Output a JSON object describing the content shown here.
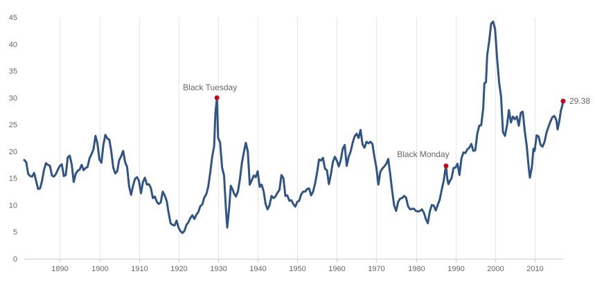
{
  "chart_data": {
    "type": "line",
    "title": "",
    "xlabel": "",
    "ylabel": "",
    "xlim": [
      1881,
      2017.2
    ],
    "ylim": [
      0,
      45
    ],
    "x_ticks": [
      1890,
      1900,
      1910,
      1920,
      1930,
      1940,
      1950,
      1960,
      1970,
      1980,
      1990,
      2000,
      2010
    ],
    "y_ticks": [
      0,
      5,
      10,
      15,
      20,
      25,
      30,
      35,
      40,
      45
    ],
    "grid": "vertical",
    "line_color": "#2f5486",
    "marker_color": "#d0021b",
    "series": [
      {
        "points": [
          [
            1881.0,
            18.4
          ],
          [
            1881.5,
            18.0
          ],
          [
            1882.0,
            15.8
          ],
          [
            1882.5,
            15.4
          ],
          [
            1883.0,
            15.3
          ],
          [
            1883.5,
            16.0
          ],
          [
            1884.0,
            14.5
          ],
          [
            1884.5,
            13.0
          ],
          [
            1885.0,
            13.1
          ],
          [
            1885.5,
            14.5
          ],
          [
            1886.0,
            16.6
          ],
          [
            1886.5,
            17.8
          ],
          [
            1887.0,
            17.5
          ],
          [
            1887.5,
            17.3
          ],
          [
            1888.0,
            15.5
          ],
          [
            1888.5,
            15.3
          ],
          [
            1889.0,
            15.8
          ],
          [
            1889.5,
            16.6
          ],
          [
            1890.0,
            17.3
          ],
          [
            1890.5,
            17.6
          ],
          [
            1891.0,
            15.4
          ],
          [
            1891.5,
            15.6
          ],
          [
            1892.0,
            18.9
          ],
          [
            1892.5,
            19.2
          ],
          [
            1893.0,
            17.6
          ],
          [
            1893.5,
            14.3
          ],
          [
            1894.0,
            15.8
          ],
          [
            1894.5,
            16.4
          ],
          [
            1895.0,
            16.6
          ],
          [
            1895.5,
            17.5
          ],
          [
            1896.0,
            16.5
          ],
          [
            1896.5,
            16.9
          ],
          [
            1897.0,
            17.1
          ],
          [
            1897.5,
            18.7
          ],
          [
            1898.0,
            19.5
          ],
          [
            1898.5,
            20.4
          ],
          [
            1899.0,
            22.9
          ],
          [
            1899.5,
            21.5
          ],
          [
            1900.0,
            18.5
          ],
          [
            1900.5,
            17.9
          ],
          [
            1901.0,
            21.2
          ],
          [
            1901.5,
            23.1
          ],
          [
            1902.0,
            22.4
          ],
          [
            1902.5,
            22.2
          ],
          [
            1903.0,
            20.0
          ],
          [
            1903.5,
            17.0
          ],
          [
            1904.0,
            15.9
          ],
          [
            1904.5,
            16.3
          ],
          [
            1905.0,
            18.4
          ],
          [
            1905.5,
            19.1
          ],
          [
            1906.0,
            20.1
          ],
          [
            1906.5,
            18.0
          ],
          [
            1907.0,
            17.1
          ],
          [
            1907.5,
            13.5
          ],
          [
            1908.0,
            11.9
          ],
          [
            1908.5,
            13.6
          ],
          [
            1909.0,
            14.9
          ],
          [
            1909.5,
            15.2
          ],
          [
            1910.0,
            14.5
          ],
          [
            1910.5,
            12.2
          ],
          [
            1911.0,
            14.3
          ],
          [
            1911.5,
            15.1
          ],
          [
            1912.0,
            13.8
          ],
          [
            1912.5,
            13.9
          ],
          [
            1913.0,
            13.2
          ],
          [
            1913.5,
            11.3
          ],
          [
            1914.0,
            11.6
          ],
          [
            1914.5,
            10.6
          ],
          [
            1915.0,
            10.2
          ],
          [
            1915.5,
            10.5
          ],
          [
            1916.0,
            12.5
          ],
          [
            1916.5,
            11.8
          ],
          [
            1917.0,
            10.8
          ],
          [
            1917.5,
            8.5
          ],
          [
            1918.0,
            6.6
          ],
          [
            1918.5,
            6.3
          ],
          [
            1919.0,
            6.2
          ],
          [
            1919.5,
            7.1
          ],
          [
            1920.0,
            5.8
          ],
          [
            1920.5,
            5.1
          ],
          [
            1921.0,
            4.8
          ],
          [
            1921.5,
            5.2
          ],
          [
            1922.0,
            6.3
          ],
          [
            1922.5,
            6.8
          ],
          [
            1923.0,
            7.6
          ],
          [
            1923.5,
            8.1
          ],
          [
            1924.0,
            7.4
          ],
          [
            1924.5,
            8.2
          ],
          [
            1925.0,
            8.7
          ],
          [
            1925.5,
            9.8
          ],
          [
            1926.0,
            10.1
          ],
          [
            1926.5,
            11.4
          ],
          [
            1927.0,
            12.0
          ],
          [
            1927.5,
            13.4
          ],
          [
            1928.0,
            16.0
          ],
          [
            1928.5,
            19.0
          ],
          [
            1929.0,
            21.0
          ],
          [
            1929.3,
            27.0
          ],
          [
            1929.7,
            30.0
          ],
          [
            1930.0,
            22.5
          ],
          [
            1930.5,
            21.7
          ],
          [
            1931.0,
            17.0
          ],
          [
            1931.5,
            15.5
          ],
          [
            1932.0,
            9.0
          ],
          [
            1932.3,
            5.8
          ],
          [
            1932.8,
            9.5
          ],
          [
            1933.2,
            13.6
          ],
          [
            1933.6,
            13.0
          ],
          [
            1934.0,
            12.2
          ],
          [
            1934.5,
            11.6
          ],
          [
            1935.0,
            12.5
          ],
          [
            1935.5,
            14.8
          ],
          [
            1936.0,
            17.8
          ],
          [
            1936.5,
            19.8
          ],
          [
            1937.0,
            21.6
          ],
          [
            1937.5,
            20.0
          ],
          [
            1938.0,
            13.8
          ],
          [
            1938.5,
            14.6
          ],
          [
            1939.0,
            15.5
          ],
          [
            1939.5,
            15.2
          ],
          [
            1940.0,
            16.3
          ],
          [
            1940.5,
            13.4
          ],
          [
            1941.0,
            13.8
          ],
          [
            1941.5,
            12.6
          ],
          [
            1942.0,
            10.2
          ],
          [
            1942.5,
            9.2
          ],
          [
            1943.0,
            10.0
          ],
          [
            1943.5,
            11.7
          ],
          [
            1944.0,
            11.3
          ],
          [
            1944.5,
            11.6
          ],
          [
            1945.0,
            12.3
          ],
          [
            1945.5,
            12.8
          ],
          [
            1946.0,
            15.6
          ],
          [
            1946.5,
            15.0
          ],
          [
            1947.0,
            11.7
          ],
          [
            1947.5,
            11.8
          ],
          [
            1948.0,
            10.8
          ],
          [
            1948.5,
            10.9
          ],
          [
            1949.0,
            10.2
          ],
          [
            1949.5,
            9.7
          ],
          [
            1950.0,
            10.6
          ],
          [
            1950.5,
            10.8
          ],
          [
            1951.0,
            12.0
          ],
          [
            1951.5,
            12.5
          ],
          [
            1952.0,
            12.5
          ],
          [
            1952.5,
            13.0
          ],
          [
            1953.0,
            13.1
          ],
          [
            1953.5,
            11.8
          ],
          [
            1954.0,
            12.5
          ],
          [
            1954.5,
            14.0
          ],
          [
            1955.0,
            16.0
          ],
          [
            1955.5,
            18.5
          ],
          [
            1956.0,
            18.3
          ],
          [
            1956.5,
            18.8
          ],
          [
            1957.0,
            16.8
          ],
          [
            1957.5,
            16.5
          ],
          [
            1958.0,
            13.9
          ],
          [
            1958.5,
            15.7
          ],
          [
            1959.0,
            18.0
          ],
          [
            1959.5,
            19.0
          ],
          [
            1960.0,
            18.3
          ],
          [
            1960.5,
            17.2
          ],
          [
            1961.0,
            18.4
          ],
          [
            1961.5,
            20.5
          ],
          [
            1962.0,
            21.2
          ],
          [
            1962.5,
            17.3
          ],
          [
            1963.0,
            19.0
          ],
          [
            1963.5,
            20.0
          ],
          [
            1964.0,
            21.6
          ],
          [
            1964.5,
            22.8
          ],
          [
            1965.0,
            23.3
          ],
          [
            1965.5,
            22.5
          ],
          [
            1966.0,
            24.0
          ],
          [
            1966.5,
            21.3
          ],
          [
            1967.0,
            20.7
          ],
          [
            1967.5,
            21.8
          ],
          [
            1968.0,
            21.5
          ],
          [
            1968.5,
            21.8
          ],
          [
            1969.0,
            21.4
          ],
          [
            1969.5,
            19.0
          ],
          [
            1970.0,
            17.0
          ],
          [
            1970.5,
            13.8
          ],
          [
            1971.0,
            16.2
          ],
          [
            1971.5,
            16.8
          ],
          [
            1972.0,
            17.2
          ],
          [
            1972.5,
            17.7
          ],
          [
            1973.0,
            18.6
          ],
          [
            1973.5,
            15.7
          ],
          [
            1974.0,
            12.6
          ],
          [
            1974.5,
            9.9
          ],
          [
            1975.0,
            8.9
          ],
          [
            1975.5,
            10.6
          ],
          [
            1976.0,
            11.2
          ],
          [
            1976.5,
            11.3
          ],
          [
            1977.0,
            11.7
          ],
          [
            1977.5,
            11.4
          ],
          [
            1978.0,
            9.8
          ],
          [
            1978.5,
            9.2
          ],
          [
            1979.0,
            9.3
          ],
          [
            1979.5,
            9.3
          ],
          [
            1980.0,
            8.9
          ],
          [
            1980.5,
            8.8
          ],
          [
            1981.0,
            8.9
          ],
          [
            1981.5,
            9.2
          ],
          [
            1982.0,
            8.6
          ],
          [
            1982.5,
            7.4
          ],
          [
            1983.0,
            6.6
          ],
          [
            1983.5,
            8.8
          ],
          [
            1984.0,
            10.0
          ],
          [
            1984.5,
            9.9
          ],
          [
            1985.0,
            9.0
          ],
          [
            1985.5,
            10.0
          ],
          [
            1986.0,
            11.0
          ],
          [
            1986.5,
            12.8
          ],
          [
            1987.0,
            14.5
          ],
          [
            1987.3,
            16.0
          ],
          [
            1987.6,
            17.3
          ],
          [
            1987.9,
            15.0
          ],
          [
            1988.2,
            13.9
          ],
          [
            1988.6,
            14.5
          ],
          [
            1989.0,
            15.0
          ],
          [
            1989.5,
            16.9
          ],
          [
            1990.0,
            17.0
          ],
          [
            1990.5,
            17.7
          ],
          [
            1991.0,
            15.6
          ],
          [
            1991.5,
            18.7
          ],
          [
            1992.0,
            19.8
          ],
          [
            1992.5,
            19.7
          ],
          [
            1993.0,
            20.4
          ],
          [
            1993.5,
            20.7
          ],
          [
            1994.0,
            21.4
          ],
          [
            1994.5,
            20.1
          ],
          [
            1995.0,
            20.2
          ],
          [
            1995.5,
            23.3
          ],
          [
            1996.0,
            24.8
          ],
          [
            1996.5,
            24.9
          ],
          [
            1997.0,
            28.0
          ],
          [
            1997.3,
            32.7
          ],
          [
            1997.7,
            32.9
          ],
          [
            1998.0,
            37.9
          ],
          [
            1998.5,
            40.5
          ],
          [
            1999.0,
            43.8
          ],
          [
            1999.5,
            44.2
          ],
          [
            2000.0,
            42.8
          ],
          [
            2000.5,
            37.4
          ],
          [
            2001.0,
            33.0
          ],
          [
            2001.5,
            30.3
          ],
          [
            2002.0,
            23.6
          ],
          [
            2002.5,
            22.9
          ],
          [
            2003.0,
            24.8
          ],
          [
            2003.5,
            27.7
          ],
          [
            2004.0,
            25.4
          ],
          [
            2004.5,
            26.5
          ],
          [
            2005.0,
            26.0
          ],
          [
            2005.5,
            26.5
          ],
          [
            2006.0,
            24.8
          ],
          [
            2006.5,
            27.2
          ],
          [
            2007.0,
            27.4
          ],
          [
            2007.5,
            23.8
          ],
          [
            2008.0,
            21.0
          ],
          [
            2008.5,
            17.0
          ],
          [
            2008.8,
            15.1
          ],
          [
            2009.3,
            17.1
          ],
          [
            2009.7,
            20.5
          ],
          [
            2010.0,
            20.1
          ],
          [
            2010.5,
            23.0
          ],
          [
            2011.0,
            22.8
          ],
          [
            2011.5,
            21.2
          ],
          [
            2012.0,
            20.9
          ],
          [
            2012.5,
            21.8
          ],
          [
            2013.0,
            23.5
          ],
          [
            2013.5,
            24.6
          ],
          [
            2014.0,
            25.6
          ],
          [
            2014.5,
            26.4
          ],
          [
            2015.0,
            26.6
          ],
          [
            2015.5,
            25.8
          ],
          [
            2015.8,
            24.1
          ],
          [
            2016.2,
            25.5
          ],
          [
            2016.6,
            27.5
          ],
          [
            2017.0,
            28.6
          ],
          [
            2017.2,
            29.38
          ]
        ]
      }
    ],
    "annotations": [
      {
        "label": "Black Tuesday",
        "x": 1929.7,
        "y": 30.0
      },
      {
        "label": "Black Monday",
        "x": 1987.6,
        "y": 17.3
      },
      {
        "label": "29.38",
        "x": 2017.2,
        "y": 29.38
      }
    ]
  }
}
